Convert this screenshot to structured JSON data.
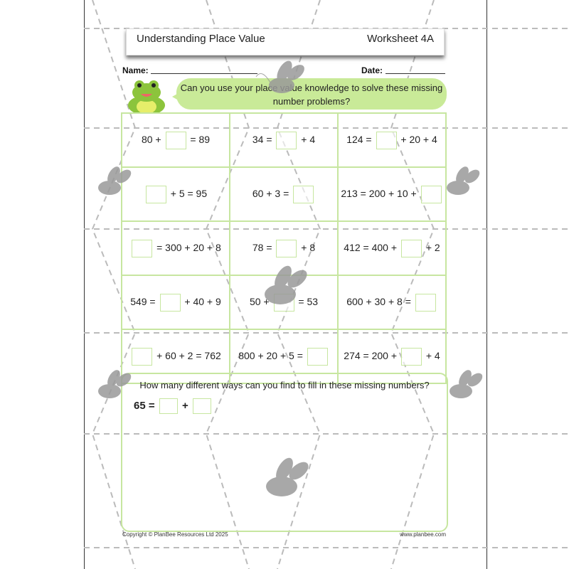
{
  "header": {
    "title": "Understanding Place Value",
    "worksheet": "Worksheet 4A"
  },
  "fields": {
    "name_label": "Name:",
    "date_label": "Date:"
  },
  "prompt": "Can you use your place value knowledge to solve these missing number problems?",
  "problems": [
    [
      [
        "80 +",
        null,
        "= 89"
      ],
      [
        "34 =",
        null,
        "+ 4"
      ],
      [
        "124 =",
        null,
        "+ 20 + 4"
      ]
    ],
    [
      [
        null,
        "+ 5 = 95"
      ],
      [
        "60 + 3 =",
        null
      ],
      [
        "213 = 200 + 10 +",
        null
      ]
    ],
    [
      [
        null,
        "= 300 + 20 + 8"
      ],
      [
        "78 =",
        null,
        "+ 8"
      ],
      [
        "412 = 400 +",
        null,
        "+ 2"
      ]
    ],
    [
      [
        "549 =",
        null,
        "+ 40 + 9"
      ],
      [
        "50 +",
        null,
        "= 53"
      ],
      [
        "600 + 30 + 8 =",
        null
      ]
    ],
    [
      [
        null,
        "+ 60 + 2 = 762"
      ],
      [
        "800 + 20 + 5 =",
        null
      ],
      [
        "274 = 200 +",
        null,
        "+ 4"
      ]
    ]
  ],
  "challenge": {
    "question": "How many different ways can you find to fill in these missing numbers?",
    "lhs": "65 =",
    "op": "+"
  },
  "footer": {
    "copyright": "Copyright © PlanBee Resources Ltd 2025",
    "website": "www.planbee.com"
  },
  "colors": {
    "accent_green": "#c7e6a0",
    "bubble_green": "#c9ea98"
  }
}
